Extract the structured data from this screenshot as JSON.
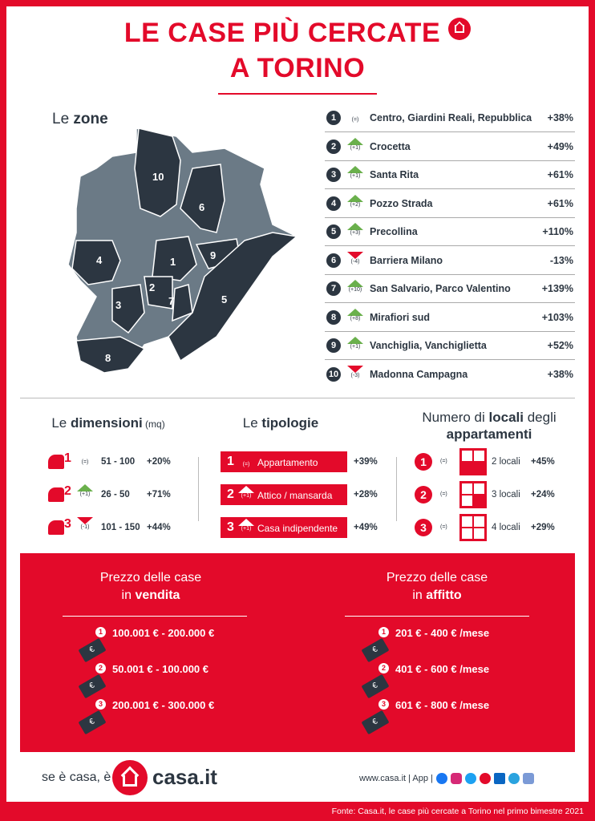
{
  "title": {
    "line1": "LE CASE PIÙ CERCATE",
    "line2": "A TORINO"
  },
  "zones": {
    "heading_pre": "Le ",
    "heading_bold": "zone",
    "items": [
      {
        "rank": "1",
        "change": "(=)",
        "dir": "same",
        "name": "Centro, Giardini Reali, Repubblica",
        "pct": "+38%"
      },
      {
        "rank": "2",
        "change": "(+1)",
        "dir": "up",
        "name": "Crocetta",
        "pct": "+49%"
      },
      {
        "rank": "3",
        "change": "(+1)",
        "dir": "up",
        "name": "Santa Rita",
        "pct": "+61%"
      },
      {
        "rank": "4",
        "change": "(+2)",
        "dir": "up",
        "name": "Pozzo Strada",
        "pct": "+61%"
      },
      {
        "rank": "5",
        "change": "(+3)",
        "dir": "up",
        "name": "Precollina",
        "pct": "+110%"
      },
      {
        "rank": "6",
        "change": "(-4)",
        "dir": "down",
        "name": "Barriera Milano",
        "pct": "-13%"
      },
      {
        "rank": "7",
        "change": "(+10)",
        "dir": "up",
        "name": "San Salvario, Parco Valentino",
        "pct": "+139%"
      },
      {
        "rank": "8",
        "change": "(+8)",
        "dir": "up",
        "name": "Mirafiori sud",
        "pct": "+103%"
      },
      {
        "rank": "9",
        "change": "(+1)",
        "dir": "up",
        "name": "Vanchiglia, Vanchiglietta",
        "pct": "+52%"
      },
      {
        "rank": "10",
        "change": "(-3)",
        "dir": "down",
        "name": "Madonna Campagna",
        "pct": "+38%"
      }
    ]
  },
  "dimensioni": {
    "pre": "Le ",
    "bold": "dimensioni",
    "unit": " (mq)",
    "items": [
      {
        "rank": "1",
        "change": "(=)",
        "dir": "same",
        "range": "51 - 100",
        "pct": "+20%"
      },
      {
        "rank": "2",
        "change": "(+1)",
        "dir": "up",
        "range": "26 - 50",
        "pct": "+71%"
      },
      {
        "rank": "3",
        "change": "(-1)",
        "dir": "down",
        "range": "101 - 150",
        "pct": "+44%"
      }
    ]
  },
  "tipologie": {
    "pre": "Le ",
    "bold": "tipologie",
    "items": [
      {
        "rank": "1",
        "change": "(=)",
        "dir": "same",
        "name": "Appartamento",
        "pct": "+39%"
      },
      {
        "rank": "2",
        "change": "(+1)",
        "dir": "up",
        "name": "Attico / mansarda",
        "pct": "+28%"
      },
      {
        "rank": "3",
        "change": "(+1)",
        "dir": "up",
        "name": "Casa indipendente",
        "pct": "+49%"
      }
    ]
  },
  "locali": {
    "pre": "Numero di ",
    "bold": "locali",
    "post": " degli",
    "line2": "appartamenti",
    "items": [
      {
        "rank": "1",
        "change": "(=)",
        "name": "2 locali",
        "pct": "+45%"
      },
      {
        "rank": "2",
        "change": "(=)",
        "name": "3 locali",
        "pct": "+24%"
      },
      {
        "rank": "3",
        "change": "(=)",
        "name": "4 locali",
        "pct": "+29%"
      }
    ]
  },
  "vendita": {
    "line1": "Prezzo delle case",
    "pre": "in ",
    "bold": "vendita",
    "items": [
      {
        "rank": "1",
        "range": "100.001 € - 200.000 €"
      },
      {
        "rank": "2",
        "range": "50.001 € - 100.000 €"
      },
      {
        "rank": "3",
        "range": "200.001 € - 300.000 €"
      }
    ]
  },
  "affitto": {
    "line1": "Prezzo delle case",
    "pre": "in ",
    "bold": "affitto",
    "items": [
      {
        "rank": "1",
        "range": "201 € - 400 € /mese"
      },
      {
        "rank": "2",
        "range": "401 € - 600 € /mese"
      },
      {
        "rank": "3",
        "range": "601 € - 800 € /mese"
      }
    ]
  },
  "euro": "€",
  "footer": {
    "slogan": "se è casa, è",
    "brand": "casa.it",
    "links": "www.casa.it | App |",
    "source": "Fonte: Casa.it, le case più cercate a Torino nel primo bimestre 2021"
  },
  "colors": {
    "red": "#e30a2a",
    "dark": "#2c3641",
    "grey": "#6b7a86",
    "green": "#6ab04c"
  }
}
